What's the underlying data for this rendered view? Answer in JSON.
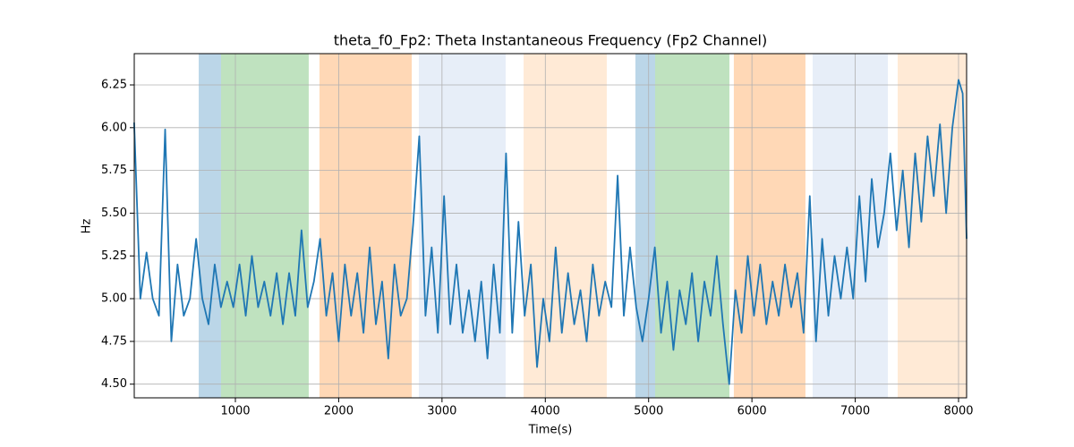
{
  "chart_data": {
    "type": "line",
    "title": "theta_f0_Fp2: Theta Instantaneous Frequency (Fp2 Channel)",
    "x_label": "Time(s)",
    "y_label": "Hz",
    "x": [
      20,
      80,
      140,
      200,
      260,
      320,
      380,
      440,
      500,
      560,
      620,
      680,
      740,
      800,
      860,
      920,
      980,
      1040,
      1100,
      1160,
      1220,
      1280,
      1340,
      1400,
      1460,
      1520,
      1580,
      1640,
      1700,
      1760,
      1820,
      1880,
      1940,
      2000,
      2060,
      2120,
      2180,
      2240,
      2300,
      2360,
      2420,
      2480,
      2540,
      2600,
      2660,
      2720,
      2780,
      2840,
      2900,
      2960,
      3020,
      3080,
      3140,
      3200,
      3260,
      3320,
      3380,
      3440,
      3500,
      3560,
      3620,
      3680,
      3740,
      3800,
      3860,
      3920,
      3980,
      4040,
      4100,
      4160,
      4220,
      4280,
      4340,
      4400,
      4460,
      4520,
      4580,
      4640,
      4700,
      4760,
      4820,
      4880,
      4940,
      5000,
      5060,
      5120,
      5180,
      5240,
      5300,
      5360,
      5420,
      5480,
      5540,
      5600,
      5660,
      5720,
      5780,
      5840,
      5900,
      5960,
      6020,
      6080,
      6140,
      6200,
      6260,
      6320,
      6380,
      6440,
      6500,
      6560,
      6620,
      6680,
      6740,
      6800,
      6860,
      6920,
      6980,
      7040,
      7100,
      7160,
      7220,
      7280,
      7340,
      7400,
      7460,
      7520,
      7580,
      7640,
      7700,
      7760,
      7820,
      7880,
      7940,
      8000,
      8040,
      8078
    ],
    "values": [
      6.03,
      5.0,
      5.27,
      5.0,
      4.9,
      5.99,
      4.75,
      5.2,
      4.9,
      5.0,
      5.35,
      5.0,
      4.85,
      5.2,
      4.95,
      5.1,
      4.95,
      5.2,
      4.9,
      5.25,
      4.95,
      5.1,
      4.9,
      5.15,
      4.85,
      5.15,
      4.9,
      5.4,
      4.95,
      5.1,
      5.35,
      4.9,
      5.15,
      4.75,
      5.2,
      4.9,
      5.15,
      4.8,
      5.3,
      4.85,
      5.1,
      4.65,
      5.2,
      4.9,
      5.0,
      5.43,
      5.95,
      4.9,
      5.3,
      4.8,
      5.6,
      4.85,
      5.2,
      4.8,
      5.05,
      4.75,
      5.1,
      4.65,
      5.2,
      4.8,
      5.85,
      4.8,
      5.45,
      4.9,
      5.2,
      4.6,
      5.0,
      4.75,
      5.3,
      4.8,
      5.15,
      4.85,
      5.05,
      4.75,
      5.2,
      4.9,
      5.1,
      4.95,
      5.72,
      4.9,
      5.3,
      4.95,
      4.75,
      5.0,
      5.3,
      4.8,
      5.1,
      4.7,
      5.05,
      4.85,
      5.15,
      4.75,
      5.1,
      4.9,
      5.25,
      4.85,
      4.5,
      5.05,
      4.8,
      5.25,
      4.9,
      5.2,
      4.85,
      5.1,
      4.9,
      5.2,
      4.95,
      5.15,
      4.8,
      5.6,
      4.75,
      5.35,
      4.9,
      5.25,
      5.0,
      5.3,
      5.0,
      5.6,
      5.1,
      5.7,
      5.3,
      5.5,
      5.85,
      5.4,
      5.75,
      5.3,
      5.85,
      5.45,
      5.95,
      5.6,
      6.02,
      5.5,
      6.0,
      6.28,
      6.2,
      5.35
    ],
    "color": "#1f77b4",
    "spans": [
      {
        "x0": 645,
        "x1": 861,
        "color": "#1f77b4",
        "alpha": 0.3
      },
      {
        "x0": 861,
        "x1": 1710,
        "color": "#2ca02c",
        "alpha": 0.3
      },
      {
        "x0": 1814,
        "x1": 2707,
        "color": "#ff7f0e",
        "alpha": 0.3
      },
      {
        "x0": 2776,
        "x1": 3616,
        "color": "#aec7e8",
        "alpha": 0.3
      },
      {
        "x0": 3790,
        "x1": 4595,
        "color": "#ffbb78",
        "alpha": 0.3
      },
      {
        "x0": 4872,
        "x1": 5063,
        "color": "#1f77b4",
        "alpha": 0.3
      },
      {
        "x0": 5063,
        "x1": 5782,
        "color": "#2ca02c",
        "alpha": 0.3
      },
      {
        "x0": 5825,
        "x1": 6518,
        "color": "#ff7f0e",
        "alpha": 0.3
      },
      {
        "x0": 6588,
        "x1": 7316,
        "color": "#aec7e8",
        "alpha": 0.3
      },
      {
        "x0": 7411,
        "x1": 8078,
        "color": "#ffbb78",
        "alpha": 0.3
      }
    ],
    "xlim": [
      21,
      8078
    ],
    "ylim": [
      4.42,
      6.433
    ],
    "xticks": [
      1000,
      2000,
      3000,
      4000,
      5000,
      6000,
      7000,
      8000
    ],
    "yticks": [
      {
        "value": 4.5,
        "label": "4.50"
      },
      {
        "value": 4.75,
        "label": "4.75"
      },
      {
        "value": 5.0,
        "label": "5.00"
      },
      {
        "value": 5.25,
        "label": "5.25"
      },
      {
        "value": 5.5,
        "label": "5.50"
      },
      {
        "value": 5.75,
        "label": "5.75"
      },
      {
        "value": 6.0,
        "label": "6.00"
      },
      {
        "value": 6.25,
        "label": "6.25"
      }
    ],
    "grid": true
  }
}
